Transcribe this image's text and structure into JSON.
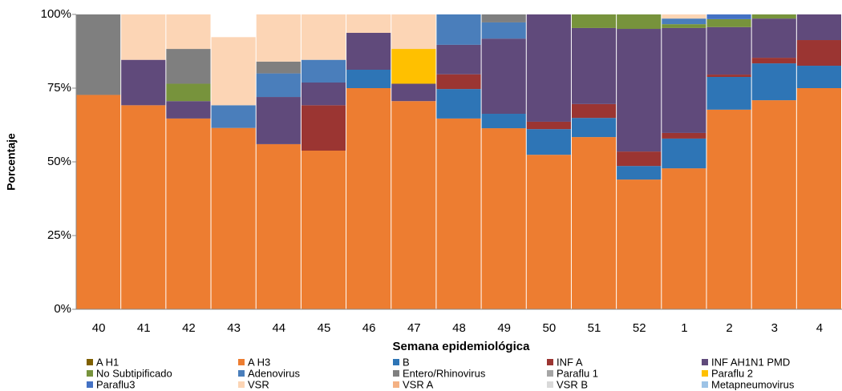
{
  "chart_data": {
    "type": "stacked_bar",
    "x_label": "Semana epidemiológica",
    "y_label": "Porcentaje",
    "categories": [
      "40",
      "41",
      "42",
      "43",
      "44",
      "45",
      "46",
      "47",
      "48",
      "49",
      "50",
      "51",
      "52",
      "1",
      "2",
      "3",
      "4"
    ],
    "ylim": [
      0,
      100
    ],
    "yticks": [
      {
        "value": 0,
        "label": "0%"
      },
      {
        "value": 25,
        "label": "25%"
      },
      {
        "value": 50,
        "label": "50%"
      },
      {
        "value": 75,
        "label": "75%"
      },
      {
        "value": 100,
        "label": "100%"
      }
    ],
    "legend": "bottom",
    "series": [
      {
        "name": "A H1",
        "color": "#7f6000",
        "values": [
          0,
          0,
          0,
          0,
          0,
          0,
          0,
          0,
          0,
          0,
          0,
          0,
          0,
          0,
          0,
          0,
          0
        ]
      },
      {
        "name": "A H3",
        "color": "#ed7d31",
        "values": [
          72.7,
          69.2,
          64.7,
          61.5,
          56,
          53.8,
          75,
          70.6,
          64.7,
          61.4,
          52.4,
          58.4,
          44,
          47.8,
          67.7,
          70.9,
          75
        ]
      },
      {
        "name": "B",
        "color": "#2e75b6",
        "values": [
          0,
          0,
          0,
          0,
          0,
          0,
          6.25,
          0,
          10,
          4.9,
          8.7,
          6.5,
          4.6,
          10.1,
          11.1,
          12.5,
          7.6
        ]
      },
      {
        "name": "INF A",
        "color": "#9b3532",
        "values": [
          0,
          0,
          0,
          0,
          0,
          15.4,
          0,
          0,
          5,
          0,
          2.5,
          4.7,
          4.9,
          1.9,
          0.8,
          1.9,
          8.7
        ]
      },
      {
        "name": "INF AH1N1 PMD",
        "color": "#604a7b",
        "values": [
          0,
          15.4,
          5.9,
          0,
          16,
          7.7,
          12.5,
          5.9,
          10,
          25.5,
          36.4,
          25.8,
          41.6,
          35.6,
          16.1,
          13.3,
          8.7
        ]
      },
      {
        "name": "No Subtipificado",
        "color": "#77933c",
        "values": [
          0,
          0,
          5.9,
          0,
          0,
          0,
          0,
          0,
          0,
          0,
          0,
          4.6,
          4.9,
          1.3,
          2.7,
          1.4,
          0
        ]
      },
      {
        "name": "Adenovirus",
        "color": "#4a7ebb",
        "values": [
          0,
          0,
          0,
          7.7,
          8,
          7.7,
          0,
          0,
          10.3,
          5.5,
          0,
          0,
          0,
          1.9,
          0,
          0,
          0
        ]
      },
      {
        "name": "Entero/Rhinovirus",
        "color": "#7f7f7f",
        "values": [
          27.3,
          0,
          11.8,
          0,
          4,
          0,
          0,
          0,
          0,
          2.7,
          0,
          0,
          0,
          0,
          0,
          0,
          0
        ]
      },
      {
        "name": "Paraflu 1",
        "color": "#a5a5a5",
        "values": [
          0,
          0,
          0,
          0,
          0,
          0,
          0,
          0,
          0,
          0,
          0,
          0,
          0,
          0,
          0,
          0,
          0
        ]
      },
      {
        "name": "Paraflu 2",
        "color": "#ffc000",
        "values": [
          0,
          0,
          0,
          0,
          0,
          0,
          0,
          11.8,
          0,
          0,
          0,
          0,
          0,
          0,
          0,
          0,
          0
        ]
      },
      {
        "name": "Paraflu3",
        "color": "#4472c4",
        "values": [
          0,
          0,
          0,
          0,
          0,
          0,
          0,
          0,
          0,
          0,
          0,
          0,
          0,
          0,
          1.6,
          0,
          0
        ]
      },
      {
        "name": "VSR",
        "color": "#fcd5b5",
        "values": [
          0,
          15.4,
          11.7,
          23.1,
          16,
          15.4,
          6.25,
          11.7,
          0,
          0,
          0,
          0,
          0,
          1.4,
          0,
          0,
          0
        ]
      },
      {
        "name": "VSR A",
        "color": "#f4b183",
        "values": [
          0,
          0,
          0,
          0,
          0,
          0,
          0,
          0,
          0,
          0,
          0,
          0,
          0,
          0,
          0,
          0,
          0
        ]
      },
      {
        "name": "VSR B",
        "color": "#d9d9d9",
        "values": [
          0,
          0,
          0,
          0,
          0,
          0,
          0,
          0,
          0,
          0,
          0,
          0,
          0,
          0,
          0,
          0,
          0
        ]
      },
      {
        "name": "Metapneumovirus",
        "color": "#9dc3e6",
        "values": [
          0,
          0,
          0,
          0,
          0,
          0,
          0,
          0,
          0,
          0,
          0,
          0,
          0,
          0,
          0,
          0,
          0
        ]
      }
    ]
  }
}
